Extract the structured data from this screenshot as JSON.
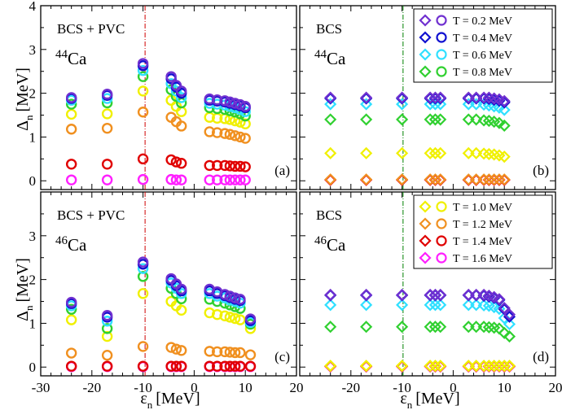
{
  "y_axis_label": "Δ",
  "y_axis_sub": "n",
  "y_axis_unit": "[MeV]",
  "x_axis_label": "ε",
  "x_axis_sub": "n",
  "x_axis_unit": "[MeV]",
  "colors": {
    "T_0.2": "#7030d0",
    "T_0.4": "#1010d0",
    "T_0.6": "#30e0ff",
    "T_0.8": "#30d030",
    "T_1.0": "#f0f000",
    "T_1.2": "#f09020",
    "T_1.4": "#e00000",
    "T_1.6": "#ff20ff",
    "pvc_line": "#d00000",
    "bcs_line": "#008000"
  },
  "legends": [
    {
      "panel": 1,
      "entries": [
        {
          "key": "T_0.2",
          "label": "T = 0.2 MeV"
        },
        {
          "key": "T_0.4",
          "label": "T = 0.4 MeV"
        },
        {
          "key": "T_0.6",
          "label": "T = 0.6 MeV"
        },
        {
          "key": "T_0.8",
          "label": "T = 0.8 MeV"
        }
      ]
    },
    {
      "panel": 3,
      "entries": [
        {
          "key": "T_1.0",
          "label": "T = 1.0 MeV"
        },
        {
          "key": "T_1.2",
          "label": "T = 1.2 MeV"
        },
        {
          "key": "T_1.4",
          "label": "T = 1.4 MeV"
        },
        {
          "key": "T_1.6",
          "label": "T = 1.6 MeV"
        }
      ]
    }
  ],
  "chart_data": [
    {
      "type": "scatter",
      "panel_label": "(a)",
      "method": "BCS + PVC",
      "nucleus_mass": "44",
      "nucleus_symbol": "Ca",
      "marker": "circle",
      "xlim": [
        -30,
        20
      ],
      "ylim": [
        -0.2,
        4
      ],
      "x_ticks": [
        -30,
        -20,
        -10,
        0,
        10
      ],
      "y_ticks": [
        0,
        1,
        2,
        3,
        4
      ],
      "fermi_energy": -9.6,
      "x": [
        -24,
        -17,
        -10,
        -4.5,
        -3.5,
        -2.5,
        3,
        4.5,
        6,
        7,
        8,
        9,
        10
      ],
      "series": [
        {
          "key": "T_0.2",
          "values": [
            1.9,
            1.98,
            2.68,
            2.38,
            2.18,
            2.05,
            1.87,
            1.85,
            1.83,
            1.8,
            1.77,
            1.74,
            1.7
          ]
        },
        {
          "key": "T_0.4",
          "values": [
            1.88,
            1.95,
            2.63,
            2.33,
            2.14,
            2.0,
            1.84,
            1.82,
            1.8,
            1.77,
            1.74,
            1.71,
            1.67
          ]
        },
        {
          "key": "T_0.6",
          "values": [
            1.84,
            1.88,
            2.52,
            2.22,
            2.05,
            1.9,
            1.77,
            1.75,
            1.73,
            1.7,
            1.67,
            1.63,
            1.58
          ]
        },
        {
          "key": "T_0.8",
          "values": [
            1.75,
            1.78,
            2.38,
            2.08,
            1.93,
            1.78,
            1.67,
            1.65,
            1.63,
            1.6,
            1.57,
            1.53,
            1.48
          ]
        },
        {
          "key": "T_1.0",
          "values": [
            1.52,
            1.53,
            2.05,
            1.84,
            1.7,
            1.58,
            1.45,
            1.43,
            1.42,
            1.4,
            1.37,
            1.34,
            1.3
          ]
        },
        {
          "key": "T_1.2",
          "values": [
            1.18,
            1.2,
            1.57,
            1.45,
            1.35,
            1.25,
            1.12,
            1.1,
            1.08,
            1.06,
            1.03,
            1.0,
            0.97
          ]
        },
        {
          "key": "T_1.4",
          "values": [
            0.38,
            0.38,
            0.5,
            0.48,
            0.43,
            0.4,
            0.35,
            0.35,
            0.35,
            0.34,
            0.33,
            0.33,
            0.32
          ]
        },
        {
          "key": "T_1.6",
          "values": [
            0.02,
            0.02,
            0.03,
            0.03,
            0.02,
            0.02,
            0.02,
            0.02,
            0.02,
            0.02,
            0.02,
            0.02,
            0.02
          ]
        }
      ]
    },
    {
      "type": "scatter",
      "panel_label": "(b)",
      "method": "BCS",
      "nucleus_mass": "44",
      "nucleus_symbol": "Ca",
      "marker": "diamond",
      "xlim": [
        -30,
        20
      ],
      "ylim": [
        -0.2,
        4
      ],
      "x_ticks": [
        -20,
        -10,
        0,
        10
      ],
      "y_ticks": [
        0,
        1,
        2,
        3,
        4
      ],
      "fermi_energy": -9.8,
      "x": [
        -24,
        -17,
        -10,
        -4.5,
        -3.5,
        -2.5,
        3,
        4.5,
        6,
        7,
        8,
        9,
        10
      ],
      "series": [
        {
          "key": "T_0.2",
          "values": [
            1.9,
            1.9,
            1.9,
            1.9,
            1.9,
            1.9,
            1.9,
            1.9,
            1.9,
            1.9,
            1.88,
            1.86,
            1.82
          ]
        },
        {
          "key": "T_0.4",
          "values": [
            1.88,
            1.88,
            1.88,
            1.88,
            1.88,
            1.88,
            1.88,
            1.88,
            1.88,
            1.87,
            1.85,
            1.83,
            1.79
          ]
        },
        {
          "key": "T_0.6",
          "values": [
            1.75,
            1.75,
            1.75,
            1.75,
            1.75,
            1.75,
            1.75,
            1.75,
            1.74,
            1.72,
            1.7,
            1.67,
            1.62
          ]
        },
        {
          "key": "T_0.8",
          "values": [
            1.4,
            1.4,
            1.4,
            1.4,
            1.4,
            1.4,
            1.4,
            1.4,
            1.38,
            1.37,
            1.35,
            1.32,
            1.26
          ]
        },
        {
          "key": "T_1.0",
          "values": [
            0.63,
            0.63,
            0.63,
            0.63,
            0.63,
            0.63,
            0.63,
            0.63,
            0.62,
            0.61,
            0.6,
            0.58,
            0.55
          ]
        },
        {
          "key": "T_1.2",
          "values": [
            0.03,
            0.03,
            0.03,
            0.03,
            0.03,
            0.03,
            0.03,
            0.03,
            0.03,
            0.03,
            0.03,
            0.03,
            0.03
          ]
        },
        {
          "key": "T_1.4",
          "values": [
            0.02,
            0.02,
            0.02,
            0.02,
            0.02,
            0.02,
            0.02,
            0.02,
            0.02,
            0.02,
            0.02,
            0.02,
            0.02
          ]
        },
        {
          "key": "T_1.6",
          "values": [
            0.02,
            0.02,
            0.02,
            0.02,
            0.02,
            0.02,
            0.02,
            0.02,
            0.02,
            0.02,
            0.02,
            0.02,
            0.02
          ]
        }
      ]
    },
    {
      "type": "scatter",
      "panel_label": "(c)",
      "method": "BCS + PVC",
      "nucleus_mass": "46",
      "nucleus_symbol": "Ca",
      "marker": "circle",
      "xlim": [
        -30,
        20
      ],
      "ylim": [
        -0.2,
        4
      ],
      "x_ticks": [
        -30,
        -20,
        -10,
        0,
        10,
        20
      ],
      "y_ticks": [
        0,
        1,
        2,
        3
      ],
      "fermi_energy": -9.6,
      "x": [
        -24,
        -17,
        -10,
        -4.5,
        -3.5,
        -2.5,
        3,
        4.5,
        6,
        7,
        8,
        9,
        11
      ],
      "series": [
        {
          "key": "T_0.2",
          "values": [
            1.48,
            1.18,
            2.4,
            2.02,
            1.9,
            1.78,
            1.78,
            1.72,
            1.66,
            1.62,
            1.58,
            1.55,
            1.1
          ]
        },
        {
          "key": "T_0.4",
          "values": [
            1.45,
            1.14,
            2.35,
            1.98,
            1.86,
            1.74,
            1.74,
            1.68,
            1.63,
            1.59,
            1.55,
            1.52,
            1.06
          ]
        },
        {
          "key": "T_0.6",
          "values": [
            1.4,
            1.05,
            2.25,
            1.92,
            1.8,
            1.68,
            1.68,
            1.62,
            1.58,
            1.53,
            1.5,
            1.46,
            1.02
          ]
        },
        {
          "key": "T_0.8",
          "values": [
            1.32,
            0.88,
            2.07,
            1.8,
            1.68,
            1.56,
            1.55,
            1.5,
            1.46,
            1.42,
            1.38,
            1.34,
            0.98
          ]
        },
        {
          "key": "T_1.0",
          "values": [
            1.08,
            0.7,
            1.68,
            1.5,
            1.4,
            1.3,
            1.24,
            1.2,
            1.17,
            1.14,
            1.11,
            1.08,
            0.88
          ]
        },
        {
          "key": "T_1.2",
          "values": [
            0.32,
            0.27,
            0.47,
            0.45,
            0.41,
            0.38,
            0.36,
            0.35,
            0.35,
            0.34,
            0.33,
            0.33,
            0.28
          ]
        },
        {
          "key": "T_1.4",
          "values": [
            0.02,
            0.02,
            0.02,
            0.02,
            0.02,
            0.02,
            0.02,
            0.02,
            0.02,
            0.02,
            0.02,
            0.02,
            0.02
          ]
        },
        {
          "key": "T_1.6",
          "values": [
            0.01,
            0.01,
            0.01,
            0.01,
            0.01,
            0.01,
            0.01,
            0.01,
            0.01,
            0.01,
            0.01,
            0.01,
            0.01
          ]
        }
      ]
    },
    {
      "type": "scatter",
      "panel_label": "(d)",
      "method": "BCS",
      "nucleus_mass": "46",
      "nucleus_symbol": "Ca",
      "marker": "diamond",
      "xlim": [
        -30,
        20
      ],
      "ylim": [
        -0.2,
        4
      ],
      "x_ticks": [
        -20,
        -10,
        0,
        10,
        20
      ],
      "y_ticks": [
        0,
        1,
        2,
        3
      ],
      "fermi_energy": -9.8,
      "x": [
        -24,
        -17,
        -10,
        -4.5,
        -3.5,
        -2.5,
        3,
        4.5,
        6,
        7,
        8,
        9,
        10,
        11
      ],
      "series": [
        {
          "key": "T_0.2",
          "values": [
            1.65,
            1.65,
            1.65,
            1.65,
            1.65,
            1.65,
            1.65,
            1.65,
            1.65,
            1.63,
            1.6,
            1.55,
            1.35,
            1.2
          ]
        },
        {
          "key": "T_0.4",
          "values": [
            1.64,
            1.64,
            1.64,
            1.64,
            1.64,
            1.64,
            1.64,
            1.64,
            1.63,
            1.61,
            1.58,
            1.53,
            1.32,
            1.15
          ]
        },
        {
          "key": "T_0.6",
          "values": [
            1.42,
            1.42,
            1.42,
            1.42,
            1.42,
            1.42,
            1.42,
            1.42,
            1.41,
            1.4,
            1.37,
            1.33,
            1.12,
            0.98
          ]
        },
        {
          "key": "T_0.8",
          "values": [
            0.92,
            0.92,
            0.92,
            0.92,
            0.92,
            0.92,
            0.92,
            0.92,
            0.92,
            0.91,
            0.9,
            0.88,
            0.78,
            0.7
          ]
        },
        {
          "key": "T_1.0",
          "values": [
            0.03,
            0.03,
            0.03,
            0.03,
            0.03,
            0.03,
            0.03,
            0.03,
            0.03,
            0.03,
            0.03,
            0.03,
            0.03,
            0.03
          ]
        },
        {
          "key": "T_1.2",
          "values": [
            0.02,
            0.02,
            0.02,
            0.02,
            0.02,
            0.02,
            0.02,
            0.02,
            0.02,
            0.02,
            0.02,
            0.02,
            0.02,
            0.02
          ]
        },
        {
          "key": "T_1.4",
          "values": [
            0.02,
            0.02,
            0.02,
            0.02,
            0.02,
            0.02,
            0.02,
            0.02,
            0.02,
            0.02,
            0.02,
            0.02,
            0.02,
            0.02
          ]
        },
        {
          "key": "T_1.6",
          "values": [
            0.01,
            0.01,
            0.01,
            0.01,
            0.01,
            0.01,
            0.01,
            0.01,
            0.01,
            0.01,
            0.01,
            0.01,
            0.01,
            0.01
          ]
        }
      ]
    }
  ]
}
